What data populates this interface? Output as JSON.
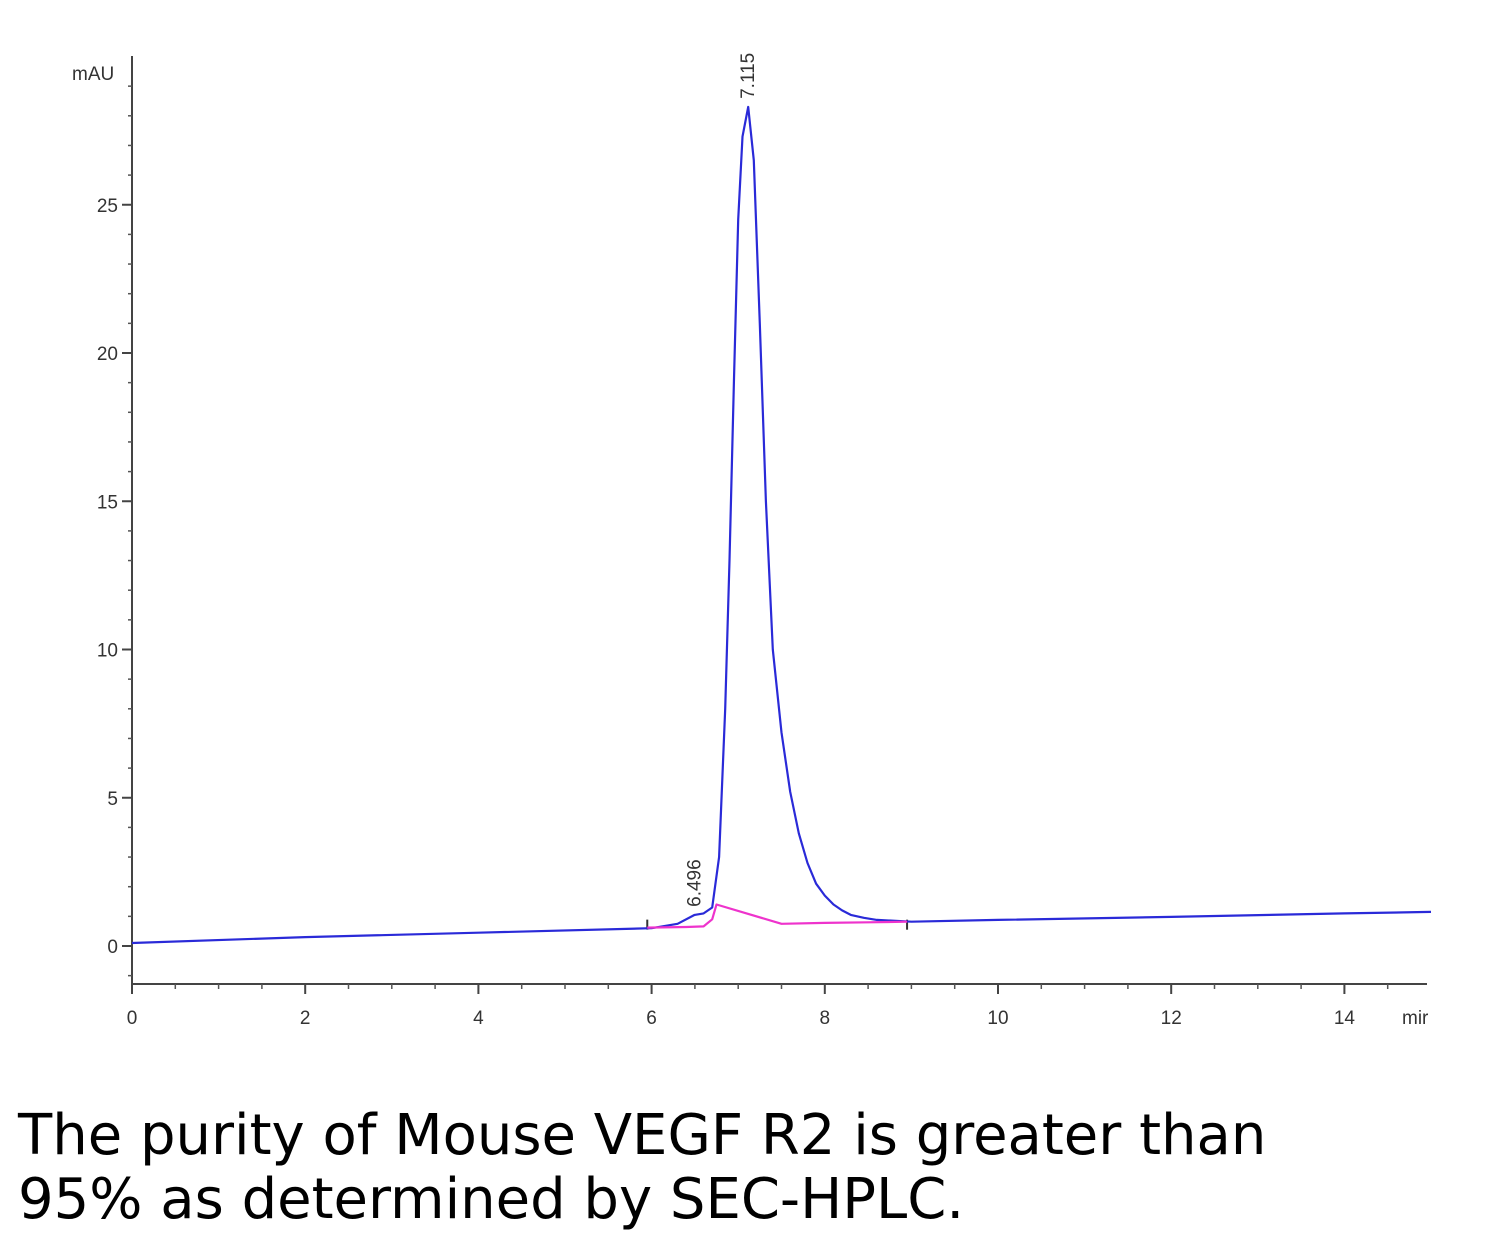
{
  "caption": {
    "line1": "The purity of Mouse VEGF R2 is greater than",
    "line2": "95% as determined by SEC-HPLC."
  },
  "chart_data": {
    "type": "line",
    "y_unit": "mAU",
    "x_unit": "mir",
    "xlim": [
      0,
      15
    ],
    "ylim": [
      -1.3,
      29.5
    ],
    "x_ticks": [
      "0",
      "2",
      "4",
      "6",
      "8",
      "10",
      "12",
      "14"
    ],
    "y_ticks": [
      "0",
      "5",
      "10",
      "15",
      "20",
      "25"
    ],
    "grid": false,
    "series": [
      {
        "color": "#2a2ad8",
        "x": [
          0,
          2,
          4,
          6.0,
          6.3,
          6.496,
          6.6,
          6.7,
          6.78,
          6.85,
          6.9,
          6.95,
          7.0,
          7.05,
          7.115,
          7.18,
          7.25,
          7.32,
          7.4,
          7.5,
          7.6,
          7.7,
          7.8,
          7.9,
          8.0,
          8.1,
          8.2,
          8.3,
          8.45,
          8.6,
          9.0,
          10,
          12,
          14,
          15
        ],
        "y": [
          0.1,
          0.3,
          0.45,
          0.6,
          0.75,
          1.05,
          1.1,
          1.3,
          3.0,
          8.0,
          13.0,
          19.0,
          24.5,
          27.3,
          28.3,
          26.5,
          21.0,
          15.0,
          10.0,
          7.2,
          5.2,
          3.8,
          2.8,
          2.1,
          1.7,
          1.4,
          1.2,
          1.05,
          0.95,
          0.88,
          0.82,
          0.88,
          0.98,
          1.1,
          1.15
        ]
      },
      {
        "color": "#ee33cc",
        "x": [
          5.95,
          6.4,
          6.6,
          6.7,
          6.75,
          7.5,
          8.0,
          8.5,
          8.95
        ],
        "y": [
          0.62,
          0.64,
          0.66,
          0.9,
          1.4,
          0.75,
          0.78,
          0.8,
          0.82
        ]
      }
    ],
    "peaks": [
      {
        "label": "6.496",
        "x": 6.496,
        "y": 1.05
      },
      {
        "label": "7.115",
        "x": 7.115,
        "y": 28.3
      }
    ]
  }
}
